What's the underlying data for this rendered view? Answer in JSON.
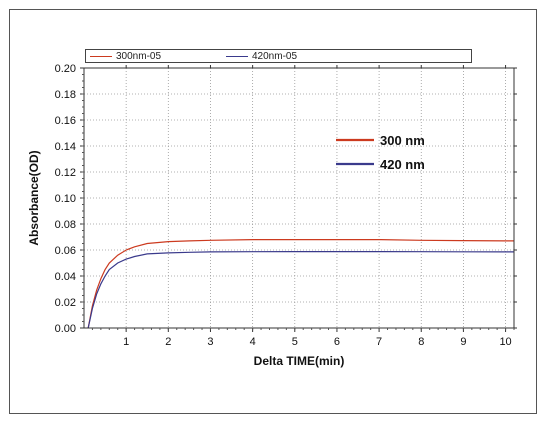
{
  "chart_data": {
    "type": "line",
    "xlabel": "Delta TIME(min)",
    "ylabel": "Absorbance(OD)",
    "xlim": [
      0,
      10.2
    ],
    "ylim": [
      0,
      0.2
    ],
    "x_ticks": [
      1,
      2,
      3,
      4,
      5,
      6,
      7,
      8,
      9,
      10
    ],
    "x_tick_labels": [
      "1",
      "2",
      "3",
      "4",
      "5",
      "6",
      "7",
      "8",
      "9",
      "10"
    ],
    "y_ticks": [
      0,
      0.02,
      0.04,
      0.06,
      0.08,
      0.1,
      0.12,
      0.14,
      0.16,
      0.18,
      0.2
    ],
    "y_tick_labels": [
      "0.00",
      "0.02",
      "0.04",
      "0.06",
      "0.08",
      "0.10",
      "0.12",
      "0.14",
      "0.16",
      "0.18",
      "0.20"
    ],
    "grid": true,
    "legend": {
      "position": "top",
      "entries": [
        {
          "name": "300nm-05",
          "color": "#cc3a1f"
        },
        {
          "name": "420nm-05",
          "color": "#3a3a8c"
        }
      ]
    },
    "annotations": [
      {
        "text": "300 nm",
        "color": "#cc3a1f"
      },
      {
        "text": "420 nm",
        "color": "#3a3a8c"
      }
    ],
    "series": [
      {
        "name": "300nm-05",
        "color": "#cc3a1f",
        "x": [
          0.1,
          0.2,
          0.3,
          0.4,
          0.5,
          0.6,
          0.8,
          1.0,
          1.2,
          1.5,
          2.0,
          2.5,
          3.0,
          4.0,
          5.0,
          6.0,
          7.0,
          8.0,
          9.0,
          10.0,
          10.2
        ],
        "y": [
          0.0,
          0.017,
          0.029,
          0.038,
          0.045,
          0.05,
          0.056,
          0.06,
          0.0625,
          0.065,
          0.0665,
          0.067,
          0.0675,
          0.068,
          0.068,
          0.068,
          0.068,
          0.0675,
          0.0672,
          0.067,
          0.067
        ]
      },
      {
        "name": "420nm-05",
        "color": "#3a3a8c",
        "x": [
          0.1,
          0.2,
          0.3,
          0.4,
          0.5,
          0.6,
          0.8,
          1.0,
          1.2,
          1.5,
          2.0,
          2.5,
          3.0,
          4.0,
          5.0,
          6.0,
          7.0,
          8.0,
          9.0,
          10.0,
          10.2
        ],
        "y": [
          0.0,
          0.015,
          0.026,
          0.034,
          0.04,
          0.045,
          0.05,
          0.053,
          0.055,
          0.057,
          0.0578,
          0.0582,
          0.0585,
          0.0587,
          0.0588,
          0.0588,
          0.0588,
          0.0587,
          0.0586,
          0.0585,
          0.0585
        ]
      }
    ]
  }
}
